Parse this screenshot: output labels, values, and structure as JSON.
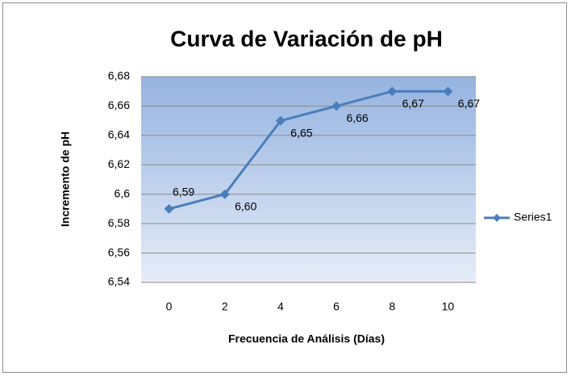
{
  "chart_data": {
    "type": "line",
    "title": "Curva de Variación de pH",
    "x_label": "Frecuencia de Análisis (Días)",
    "y_label": "Incremento de pH",
    "x": [
      0,
      2,
      4,
      6,
      8,
      10
    ],
    "xlim": [
      -1,
      11
    ],
    "xticks": [
      0,
      2,
      4,
      6,
      8,
      10
    ],
    "series": [
      {
        "name": "Series1",
        "color": "#4a7ebb",
        "values": [
          6.59,
          6.6,
          6.65,
          6.66,
          6.67,
          6.67
        ],
        "value_labels": [
          "6,59",
          "6,60",
          "6,65",
          "6,66",
          "6,67",
          "6,67"
        ]
      }
    ],
    "ylim": [
      6.54,
      6.68
    ],
    "yticks": [
      {
        "value": 6.54,
        "label": "6,54"
      },
      {
        "value": 6.56,
        "label": "6,56"
      },
      {
        "value": 6.58,
        "label": "6,58"
      },
      {
        "value": 6.6,
        "label": "6,6"
      },
      {
        "value": 6.62,
        "label": "6,62"
      },
      {
        "value": 6.64,
        "label": "6,64"
      },
      {
        "value": 6.66,
        "label": "6,66"
      },
      {
        "value": 6.68,
        "label": "6,68"
      }
    ],
    "grid": true,
    "legend": "right"
  }
}
